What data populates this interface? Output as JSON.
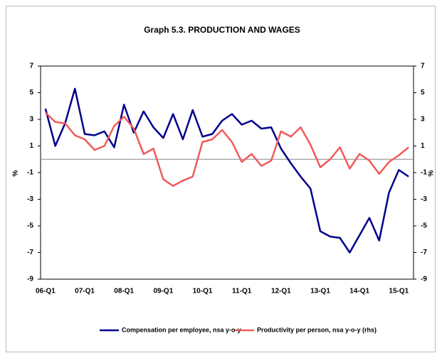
{
  "chart_data": {
    "type": "line",
    "title": "Graph 5.3. PRODUCTION AND WAGES",
    "y_label": "%",
    "y2_label": "%",
    "categories": [
      "06-Q1",
      null,
      null,
      null,
      "07-Q1",
      null,
      null,
      null,
      "08-Q1",
      null,
      null,
      null,
      "09-Q1",
      null,
      null,
      null,
      "10-Q1",
      null,
      null,
      null,
      "11-Q1",
      null,
      null,
      null,
      "12-Q1",
      null,
      null,
      null,
      "13-Q1",
      null,
      null,
      null,
      "14-Q1",
      null,
      null,
      null,
      "15-Q1",
      null
    ],
    "series": [
      {
        "name": "Compensation per employee, nsa y-o-y",
        "color": "#00008b",
        "axis": "y",
        "values": [
          3.8,
          1.0,
          2.7,
          5.3,
          1.9,
          1.8,
          2.1,
          0.9,
          4.1,
          2.0,
          3.6,
          2.4,
          1.6,
          3.4,
          1.5,
          3.7,
          1.7,
          1.9,
          2.9,
          3.4,
          2.6,
          2.9,
          2.3,
          2.4,
          0.8,
          -0.3,
          -1.3,
          -2.2,
          -5.4,
          -5.8,
          -5.9,
          -7.0,
          -5.7,
          -4.4,
          -6.1,
          -2.5,
          -0.8,
          -1.3
        ]
      },
      {
        "name": "Productivity per person, nsa y-o-y (rhs)",
        "color": "#f05a5a",
        "axis": "y2",
        "values": [
          3.5,
          2.8,
          2.7,
          1.8,
          1.5,
          0.7,
          1.0,
          2.5,
          3.2,
          2.3,
          0.4,
          0.8,
          -1.5,
          -2.0,
          -1.6,
          -1.3,
          1.3,
          1.5,
          2.2,
          1.3,
          -0.2,
          0.4,
          -0.5,
          -0.1,
          2.1,
          1.7,
          2.4,
          1.1,
          -0.6,
          0.0,
          0.9,
          -0.7,
          0.4,
          -0.1,
          -1.1,
          -0.2,
          0.3,
          0.9
        ]
      }
    ],
    "ylim": [
      -9,
      7
    ],
    "yticks": [
      7,
      5,
      3,
      1,
      -1,
      -3,
      -5,
      -7,
      -9
    ],
    "y2lim": [
      -9,
      7
    ],
    "y2ticks": [
      7,
      5,
      3,
      1,
      -1,
      -3,
      -5,
      -7,
      -9
    ],
    "grid": false,
    "legend": "bottom"
  }
}
